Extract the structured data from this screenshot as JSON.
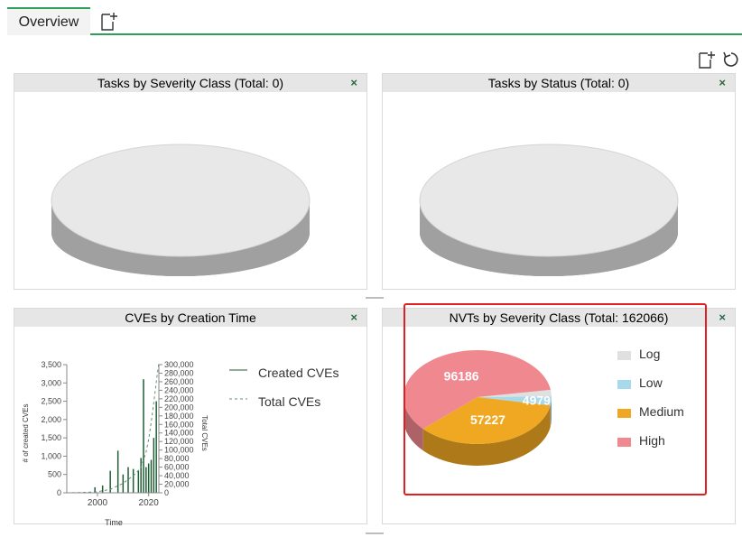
{
  "tabs": [
    {
      "label": "Overview",
      "active": true
    }
  ],
  "accent_color": "#2e9e5b",
  "toolbar": {
    "add_icon": "new-dashboard-icon",
    "reset_icon": "reset-icon"
  },
  "panels": {
    "tasks_severity": {
      "title": "Tasks by Severity Class (Total: 0)",
      "close_label": "×"
    },
    "tasks_status": {
      "title": "Tasks by Status (Total: 0)",
      "close_label": "×"
    },
    "cves": {
      "title": "CVEs by Creation Time",
      "close_label": "×"
    },
    "nvts": {
      "title": "NVTs by Severity Class (Total: 162066)",
      "close_label": "×"
    }
  },
  "cve_chart": {
    "y1_label": "# of created CVEs",
    "y2_label": "Total CVEs",
    "x_label": "Time",
    "y1_ticks": [
      "0",
      "500",
      "1,000",
      "1,500",
      "2,000",
      "2,500",
      "3,000",
      "3,500"
    ],
    "y2_ticks": [
      "0",
      "20,000",
      "40,000",
      "60,000",
      "80,000",
      "100,000",
      "120,000",
      "140,000",
      "160,000",
      "180,000",
      "200,000",
      "220,000",
      "240,000",
      "260,000",
      "280,000",
      "300,000"
    ],
    "x_ticks": [
      "2000",
      "2020"
    ],
    "legend": [
      {
        "label": "Created CVEs",
        "style": "solid"
      },
      {
        "label": "Total CVEs",
        "style": "dashed"
      }
    ],
    "colors": {
      "created": "#1f5c34",
      "total": "#5f8f6f"
    }
  },
  "chart_data": [
    {
      "type": "pie",
      "title": "Tasks by Severity Class (Total: 0)",
      "values": []
    },
    {
      "type": "pie",
      "title": "Tasks by Status (Total: 0)",
      "values": []
    },
    {
      "type": "line",
      "title": "CVEs by Creation Time",
      "xlabel": "Time",
      "ylabel": "# of created CVEs",
      "y2label": "Total CVEs",
      "ylim": [
        0,
        3500
      ],
      "y2lim": [
        0,
        300000
      ],
      "series": [
        {
          "name": "Created CVEs",
          "x": [
            1988,
            1995,
            1999,
            2002,
            2005,
            2008,
            2010,
            2012,
            2014,
            2016,
            2017,
            2018,
            2019,
            2020,
            2021,
            2022,
            2023
          ],
          "values": [
            5,
            20,
            150,
            200,
            600,
            1150,
            500,
            700,
            650,
            600,
            950,
            3100,
            700,
            800,
            900,
            1500,
            2500
          ]
        },
        {
          "name": "Total CVEs",
          "x": [
            1988,
            1995,
            2000,
            2005,
            2010,
            2015,
            2017,
            2019,
            2020,
            2021,
            2022,
            2023,
            2024
          ],
          "values": [
            0,
            800,
            2500,
            8000,
            22000,
            45000,
            60000,
            95000,
            125000,
            165000,
            210000,
            260000,
            305000
          ]
        }
      ]
    },
    {
      "type": "pie",
      "title": "NVTs by Severity Class (Total: 162066)",
      "categories": [
        "Log",
        "Low",
        "Medium",
        "High"
      ],
      "values": [
        3674,
        4979,
        57227,
        96186
      ],
      "labels": [
        "",
        "4979",
        "57227",
        "96186"
      ],
      "colors": [
        "#e0e0e0",
        "#a6d9ea",
        "#f0a823",
        "#f0888f"
      ]
    }
  ]
}
